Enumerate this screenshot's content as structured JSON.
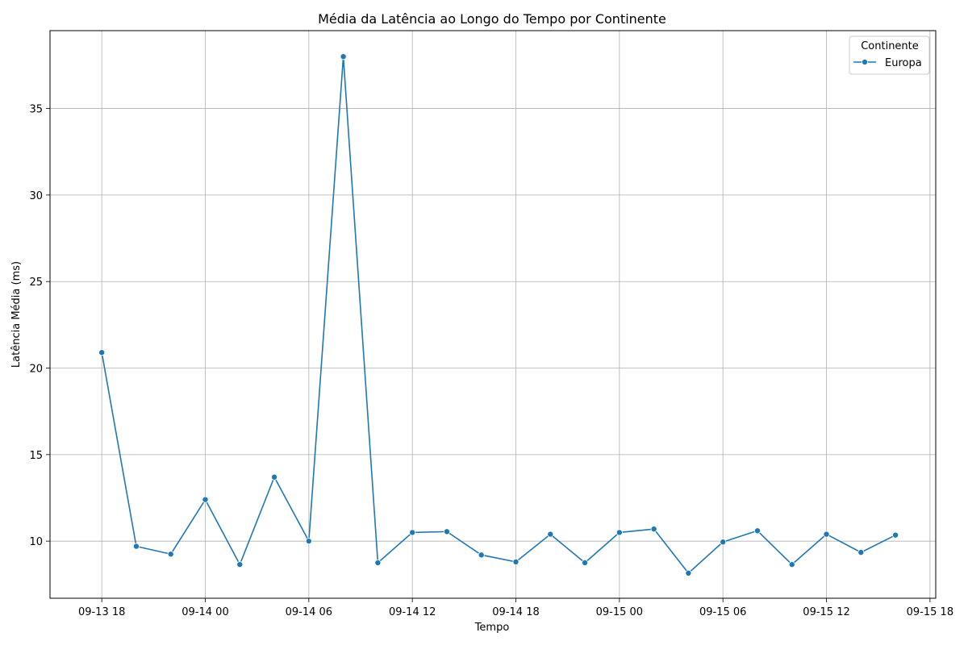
{
  "chart_data": {
    "type": "line",
    "title": "Média da Latência ao Longo do Tempo por Continente",
    "xlabel": "Tempo",
    "ylabel": "Latência Média (ms)",
    "xlim": [
      "2023-09-13T15:00",
      "2023-09-15T18:20"
    ],
    "ylim": [
      6.7,
      39.5
    ],
    "xticks": [
      {
        "t": "2023-09-13T18:00",
        "label": "09-13 18"
      },
      {
        "t": "2023-09-14T00:00",
        "label": "09-14 00"
      },
      {
        "t": "2023-09-14T06:00",
        "label": "09-14 06"
      },
      {
        "t": "2023-09-14T12:00",
        "label": "09-14 12"
      },
      {
        "t": "2023-09-14T18:00",
        "label": "09-14 18"
      },
      {
        "t": "2023-09-15T00:00",
        "label": "09-15 00"
      },
      {
        "t": "2023-09-15T06:00",
        "label": "09-15 06"
      },
      {
        "t": "2023-09-15T12:00",
        "label": "09-15 12"
      },
      {
        "t": "2023-09-15T18:00",
        "label": "09-15 18"
      }
    ],
    "yticks": [
      10,
      15,
      20,
      25,
      30,
      35
    ],
    "grid": true,
    "legend": {
      "title": "Continente",
      "position": "top-right"
    },
    "series": [
      {
        "name": "Europa",
        "color": "#1f77b4",
        "points": [
          {
            "t": "2023-09-13T18:00",
            "y": 20.9
          },
          {
            "t": "2023-09-13T20:00",
            "y": 9.7
          },
          {
            "t": "2023-09-13T22:00",
            "y": 9.25
          },
          {
            "t": "2023-09-14T00:00",
            "y": 12.4
          },
          {
            "t": "2023-09-14T02:00",
            "y": 8.65
          },
          {
            "t": "2023-09-14T04:00",
            "y": 13.7
          },
          {
            "t": "2023-09-14T06:00",
            "y": 10.0
          },
          {
            "t": "2023-09-14T08:00",
            "y": 38.0
          },
          {
            "t": "2023-09-14T10:00",
            "y": 8.75
          },
          {
            "t": "2023-09-14T12:00",
            "y": 10.5
          },
          {
            "t": "2023-09-14T14:00",
            "y": 10.55
          },
          {
            "t": "2023-09-14T16:00",
            "y": 9.2
          },
          {
            "t": "2023-09-14T18:00",
            "y": 8.8
          },
          {
            "t": "2023-09-14T20:00",
            "y": 10.4
          },
          {
            "t": "2023-09-14T22:00",
            "y": 8.75
          },
          {
            "t": "2023-09-15T00:00",
            "y": 10.5
          },
          {
            "t": "2023-09-15T02:00",
            "y": 10.7
          },
          {
            "t": "2023-09-15T04:00",
            "y": 8.15
          },
          {
            "t": "2023-09-15T06:00",
            "y": 9.95
          },
          {
            "t": "2023-09-15T08:00",
            "y": 10.6
          },
          {
            "t": "2023-09-15T10:00",
            "y": 8.65
          },
          {
            "t": "2023-09-15T12:00",
            "y": 10.4
          },
          {
            "t": "2023-09-15T14:00",
            "y": 9.35
          },
          {
            "t": "2023-09-15T16:00",
            "y": 10.35
          }
        ]
      }
    ]
  }
}
